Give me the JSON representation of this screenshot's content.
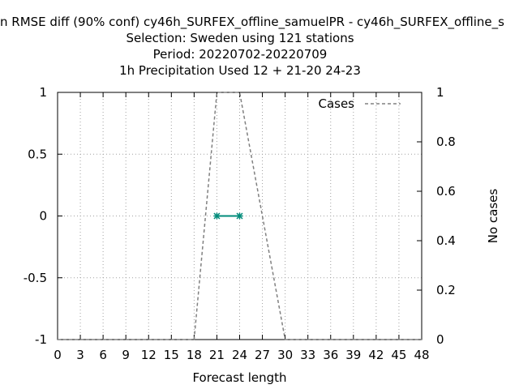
{
  "chart_data": {
    "type": "line",
    "title_lines": [
      "n RMSE diff (90% conf) cy46h_SURFEX_offline_samuelPR - cy46h_SURFEX_offline_s",
      "Selection: Sweden using   121 stations",
      "Period: 20220702-20220709",
      "1h Precipitation   Used  12 + 21-20 24-23"
    ],
    "xlabel": "Forecast length",
    "ylabel_left": "",
    "ylabel_right": "No cases",
    "xlim": [
      0,
      48
    ],
    "ylim_left": [
      -1,
      1
    ],
    "ylim_right": [
      0,
      1
    ],
    "x_ticks": [
      0,
      3,
      6,
      9,
      12,
      15,
      18,
      21,
      24,
      27,
      30,
      33,
      36,
      39,
      42,
      45,
      48
    ],
    "y_ticks_left": [
      -1,
      -0.5,
      0,
      0.5,
      1
    ],
    "y_tick_labels_left": [
      "-1",
      "-0.5",
      "0",
      "0.5",
      "1"
    ],
    "y_ticks_right": [
      0,
      0.2,
      0.4,
      0.6,
      0.8,
      1
    ],
    "y_tick_labels_right": [
      "0",
      "0.2",
      "0.4",
      "0.6",
      "0.8",
      "1"
    ],
    "grid": true,
    "legend_position": "top-right",
    "series": [
      {
        "name": "",
        "axis": "left",
        "color": "#008b7a",
        "style": "solid-with-markers",
        "x": [
          21,
          24
        ],
        "y": [
          0,
          0
        ]
      },
      {
        "name": "Cases",
        "axis": "right",
        "color": "#808080",
        "style": "dashed",
        "x": [
          0,
          18,
          21,
          24,
          27,
          30,
          48
        ],
        "y": [
          0,
          0,
          1,
          1,
          0.5,
          0,
          0
        ]
      }
    ]
  }
}
